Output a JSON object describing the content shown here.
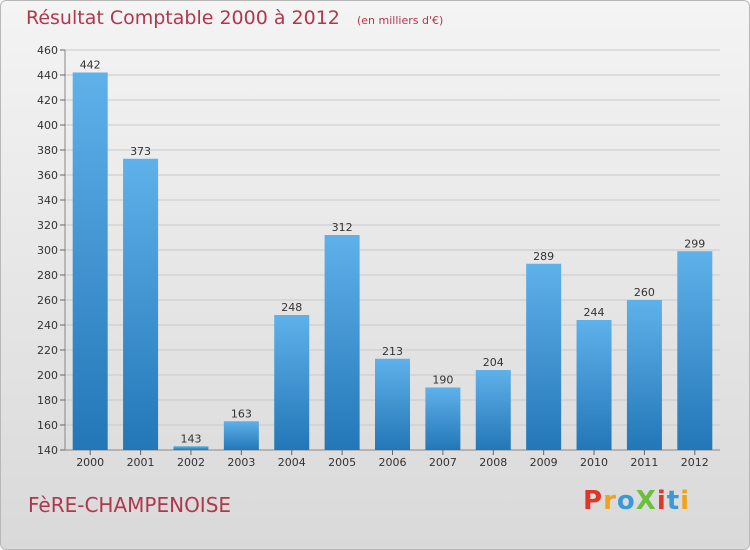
{
  "header": {
    "title": "Résultat Comptable 2000 à 2012",
    "subtitle": "(en milliers d'€)"
  },
  "footer": {
    "place": "FèRE-CHAMPENOISE",
    "logo": "ProXiti"
  },
  "colors": {
    "title": "#b0384d",
    "bar_top": "#5fb1ea",
    "bar_bottom": "#2377b7"
  },
  "chart_data": {
    "type": "bar",
    "title": "Résultat Comptable 2000 à 2012",
    "subtitle": "(en milliers d'€)",
    "xlabel": "",
    "ylabel": "",
    "categories": [
      "2000",
      "2001",
      "2002",
      "2003",
      "2004",
      "2005",
      "2006",
      "2007",
      "2008",
      "2009",
      "2010",
      "2011",
      "2012"
    ],
    "values": [
      442,
      373,
      143,
      163,
      248,
      312,
      213,
      190,
      204,
      289,
      244,
      260,
      299
    ],
    "ylim": [
      140,
      460
    ],
    "yticks": [
      140,
      160,
      180,
      200,
      220,
      240,
      260,
      280,
      300,
      320,
      340,
      360,
      380,
      400,
      420,
      440,
      460
    ],
    "grid": true,
    "legend": "none"
  }
}
